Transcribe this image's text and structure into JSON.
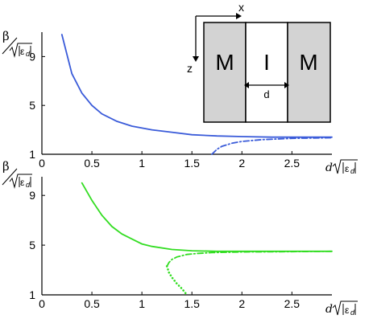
{
  "chart_data": [
    {
      "type": "line",
      "panel": "top",
      "xlim": [
        0,
        2.9
      ],
      "ylim": [
        1,
        11
      ],
      "x_ticks": [
        "0",
        "0.5",
        "1",
        "1.5",
        "2",
        "2.5"
      ],
      "y_ticks": [
        "1",
        "5",
        "9"
      ],
      "x_tick_values": [
        0,
        0.5,
        1,
        1.5,
        2,
        2.5
      ],
      "y_tick_values": [
        1,
        5,
        9
      ],
      "xlabel": "d√|εd|",
      "ylabel": "β/√|εd|",
      "color": "#3a5bd9",
      "series": [
        {
          "style": "solid",
          "x": [
            0.2,
            0.3,
            0.4,
            0.5,
            0.6,
            0.75,
            0.9,
            1.1,
            1.3,
            1.5,
            1.75,
            2.0,
            2.3,
            2.6,
            2.9
          ],
          "y": [
            10.8,
            7.6,
            6.0,
            5.0,
            4.3,
            3.7,
            3.3,
            3.0,
            2.8,
            2.6,
            2.5,
            2.45,
            2.4,
            2.4,
            2.4
          ]
        },
        {
          "style": "dash-dot",
          "x": [
            1.7,
            1.75,
            1.8,
            1.9,
            2.0,
            2.2,
            2.5,
            2.9
          ],
          "y": [
            1.0,
            1.4,
            1.65,
            1.9,
            2.05,
            2.2,
            2.3,
            2.35
          ]
        }
      ],
      "inset": {
        "axis_x": "x",
        "axis_z": "z",
        "left": "M",
        "middle": "I",
        "right": "M",
        "gap": "d"
      }
    },
    {
      "type": "line",
      "panel": "bottom",
      "xlim": [
        0,
        2.9
      ],
      "ylim": [
        1,
        10.5
      ],
      "x_ticks": [
        "0",
        "0.5",
        "1",
        "1.5",
        "2",
        "2.5"
      ],
      "y_ticks": [
        "1",
        "5",
        "9"
      ],
      "x_tick_values": [
        0,
        0.5,
        1,
        1.5,
        2,
        2.5
      ],
      "y_tick_values": [
        1,
        5,
        9
      ],
      "xlabel": "d√|εd|",
      "ylabel": "β/√|εd|",
      "color": "#33dd22",
      "series": [
        {
          "style": "solid",
          "x": [
            0.4,
            0.5,
            0.6,
            0.7,
            0.8,
            0.9,
            1.0,
            1.1,
            1.3,
            1.5,
            1.75,
            2.0,
            2.5,
            2.9
          ],
          "y": [
            10.0,
            8.6,
            7.4,
            6.5,
            5.9,
            5.5,
            5.1,
            4.9,
            4.65,
            4.55,
            4.5,
            4.5,
            4.5,
            4.5
          ]
        },
        {
          "style": "dash-dot",
          "x": [
            1.25,
            1.27,
            1.3,
            1.35,
            1.4,
            1.45,
            1.55,
            1.7,
            2.0,
            2.5,
            2.9
          ],
          "y": [
            3.3,
            3.6,
            3.85,
            4.05,
            4.15,
            4.25,
            4.33,
            4.4,
            4.45,
            4.48,
            4.5
          ]
        },
        {
          "style": "dotted",
          "x": [
            1.25,
            1.27,
            1.3,
            1.35,
            1.4,
            1.45
          ],
          "y": [
            3.3,
            2.8,
            2.4,
            1.9,
            1.5,
            1.0
          ]
        }
      ]
    }
  ]
}
